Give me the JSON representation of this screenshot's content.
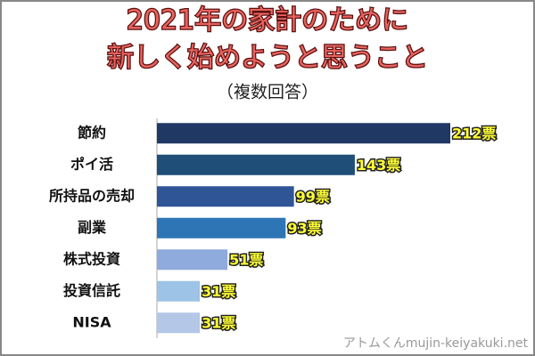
{
  "chart_data": {
    "type": "barh",
    "title": [
      "2021年の家計のために",
      "新しく始めようと思うこと"
    ],
    "subtitle": "（複数回答）",
    "categories": [
      "節約",
      "ポイ活",
      "所持品の売却",
      "副業",
      "株式投資",
      "投資信託",
      "NISA"
    ],
    "values": [
      212,
      143,
      99,
      93,
      51,
      31,
      31
    ],
    "value_labels": [
      "212票",
      "143票",
      "99票",
      "93票",
      "51票",
      "31票",
      "31票"
    ],
    "colors": [
      "#203864",
      "#1f4e79",
      "#2f5597",
      "#2e75b6",
      "#8faadc",
      "#9dc3e6",
      "#b4c7e7"
    ],
    "watermark": "アトムくんmujin-keiyakuki.net"
  }
}
